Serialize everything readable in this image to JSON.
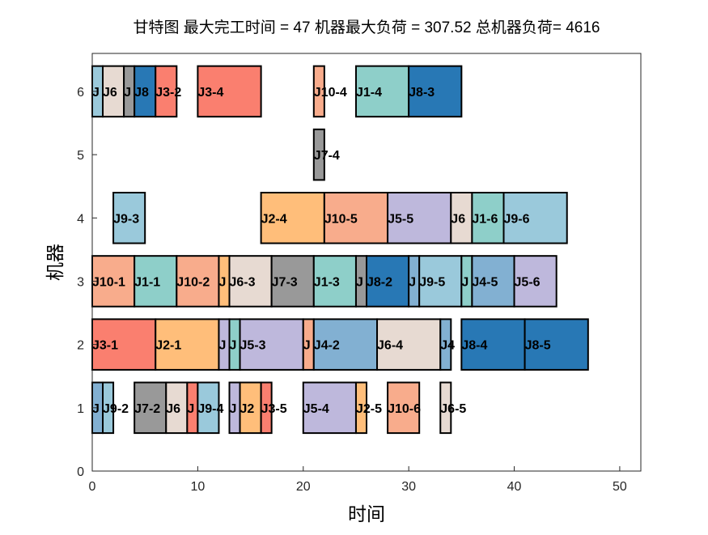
{
  "chart_data": {
    "type": "gantt",
    "title": "甘特图 最大完工时间 = 47 机器最大负荷 = 307.52 总机器负荷= 4616",
    "xlabel": "时间",
    "ylabel": "机器",
    "xlim": [
      0,
      52
    ],
    "ylim": [
      0,
      6.6
    ],
    "xticks": [
      "0",
      "10",
      "20",
      "30",
      "40",
      "50"
    ],
    "yticks": [
      "0",
      "1",
      "2",
      "3",
      "4",
      "5",
      "6"
    ],
    "job_colors": {
      "1": "#8ECFC9",
      "2": "#FFBE7A",
      "3": "#FA7F6F",
      "4": "#82B0D2",
      "5": "#BEB8DC",
      "6": "#E7DAD2",
      "7": "#999999",
      "8": "#2878B5",
      "9": "#9AC9DB",
      "10": "#F8AC8C"
    },
    "tasks": [
      {
        "machine": 6,
        "start": 0,
        "end": 1,
        "job": 9,
        "label": "J"
      },
      {
        "machine": 6,
        "start": 1,
        "end": 3,
        "job": 6,
        "label": "J6"
      },
      {
        "machine": 6,
        "start": 3,
        "end": 4,
        "job": 7,
        "label": "J"
      },
      {
        "machine": 6,
        "start": 4,
        "end": 6,
        "job": 8,
        "label": "J8"
      },
      {
        "machine": 6,
        "start": 6,
        "end": 8,
        "job": 3,
        "label": "J3-2"
      },
      {
        "machine": 6,
        "start": 10,
        "end": 16,
        "job": 3,
        "label": "J3-4"
      },
      {
        "machine": 6,
        "start": 21,
        "end": 22,
        "job": 10,
        "label": "J10-4"
      },
      {
        "machine": 6,
        "start": 25,
        "end": 30,
        "job": 1,
        "label": "J1-4"
      },
      {
        "machine": 6,
        "start": 30,
        "end": 35,
        "job": 8,
        "label": "J8-3"
      },
      {
        "machine": 5,
        "start": 21,
        "end": 22,
        "job": 7,
        "label": "J7-4"
      },
      {
        "machine": 4,
        "start": 2,
        "end": 5,
        "job": 9,
        "label": "J9-3"
      },
      {
        "machine": 4,
        "start": 16,
        "end": 22,
        "job": 2,
        "label": "J2-4"
      },
      {
        "machine": 4,
        "start": 22,
        "end": 28,
        "job": 10,
        "label": "J10-5"
      },
      {
        "machine": 4,
        "start": 28,
        "end": 34,
        "job": 5,
        "label": "J5-5"
      },
      {
        "machine": 4,
        "start": 34,
        "end": 36,
        "job": 6,
        "label": "J6"
      },
      {
        "machine": 4,
        "start": 36,
        "end": 39,
        "job": 1,
        "label": "J1-6"
      },
      {
        "machine": 4,
        "start": 39,
        "end": 45,
        "job": 9,
        "label": "J9-6"
      },
      {
        "machine": 3,
        "start": 0,
        "end": 4,
        "job": 10,
        "label": "J10-1"
      },
      {
        "machine": 3,
        "start": 4,
        "end": 8,
        "job": 1,
        "label": "J1-1"
      },
      {
        "machine": 3,
        "start": 8,
        "end": 12,
        "job": 10,
        "label": "J10-2"
      },
      {
        "machine": 3,
        "start": 12,
        "end": 13,
        "job": 2,
        "label": "J"
      },
      {
        "machine": 3,
        "start": 13,
        "end": 17,
        "job": 6,
        "label": "J6-3"
      },
      {
        "machine": 3,
        "start": 17,
        "end": 21,
        "job": 7,
        "label": "J7-3"
      },
      {
        "machine": 3,
        "start": 21,
        "end": 25,
        "job": 1,
        "label": "J1-3"
      },
      {
        "machine": 3,
        "start": 25,
        "end": 26,
        "job": 7,
        "label": "J"
      },
      {
        "machine": 3,
        "start": 26,
        "end": 30,
        "job": 8,
        "label": "J8-2"
      },
      {
        "machine": 3,
        "start": 30,
        "end": 31,
        "job": 4,
        "label": "J"
      },
      {
        "machine": 3,
        "start": 31,
        "end": 35,
        "job": 9,
        "label": "J9-5"
      },
      {
        "machine": 3,
        "start": 35,
        "end": 36,
        "job": 1,
        "label": "J"
      },
      {
        "machine": 3,
        "start": 36,
        "end": 40,
        "job": 4,
        "label": "J4-5"
      },
      {
        "machine": 3,
        "start": 40,
        "end": 44,
        "job": 5,
        "label": "J5-6"
      },
      {
        "machine": 2,
        "start": 0,
        "end": 6,
        "job": 3,
        "label": "J3-1"
      },
      {
        "machine": 2,
        "start": 6,
        "end": 12,
        "job": 2,
        "label": "J2-1"
      },
      {
        "machine": 2,
        "start": 12,
        "end": 13,
        "job": 5,
        "label": "J"
      },
      {
        "machine": 2,
        "start": 13,
        "end": 14,
        "job": 1,
        "label": "J"
      },
      {
        "machine": 2,
        "start": 14,
        "end": 20,
        "job": 5,
        "label": "J5-3"
      },
      {
        "machine": 2,
        "start": 20,
        "end": 21,
        "job": 10,
        "label": "J"
      },
      {
        "machine": 2,
        "start": 21,
        "end": 27,
        "job": 4,
        "label": "J4-2"
      },
      {
        "machine": 2,
        "start": 27,
        "end": 33,
        "job": 6,
        "label": "J6-4"
      },
      {
        "machine": 2,
        "start": 33,
        "end": 34,
        "job": 4,
        "label": "J4"
      },
      {
        "machine": 2,
        "start": 35,
        "end": 41,
        "job": 8,
        "label": "J8-4"
      },
      {
        "machine": 2,
        "start": 41,
        "end": 47,
        "job": 8,
        "label": "J8-5"
      },
      {
        "machine": 1,
        "start": 0,
        "end": 1,
        "job": 4,
        "label": "J"
      },
      {
        "machine": 1,
        "start": 1,
        "end": 2,
        "job": 9,
        "label": "J9-2"
      },
      {
        "machine": 1,
        "start": 4,
        "end": 7,
        "job": 7,
        "label": "J7-2"
      },
      {
        "machine": 1,
        "start": 7,
        "end": 9,
        "job": 6,
        "label": "J6"
      },
      {
        "machine": 1,
        "start": 9,
        "end": 10,
        "job": 3,
        "label": "J"
      },
      {
        "machine": 1,
        "start": 10,
        "end": 12,
        "job": 9,
        "label": "J9-4"
      },
      {
        "machine": 1,
        "start": 13,
        "end": 14,
        "job": 5,
        "label": "J"
      },
      {
        "machine": 1,
        "start": 14,
        "end": 16,
        "job": 2,
        "label": "J2"
      },
      {
        "machine": 1,
        "start": 16,
        "end": 17,
        "job": 3,
        "label": "J3-5"
      },
      {
        "machine": 1,
        "start": 20,
        "end": 25,
        "job": 5,
        "label": "J5-4"
      },
      {
        "machine": 1,
        "start": 25,
        "end": 26,
        "job": 2,
        "label": "J2-5"
      },
      {
        "machine": 1,
        "start": 28,
        "end": 31,
        "job": 10,
        "label": "J10-6"
      },
      {
        "machine": 1,
        "start": 33,
        "end": 34,
        "job": 6,
        "label": "J6-5"
      }
    ]
  }
}
